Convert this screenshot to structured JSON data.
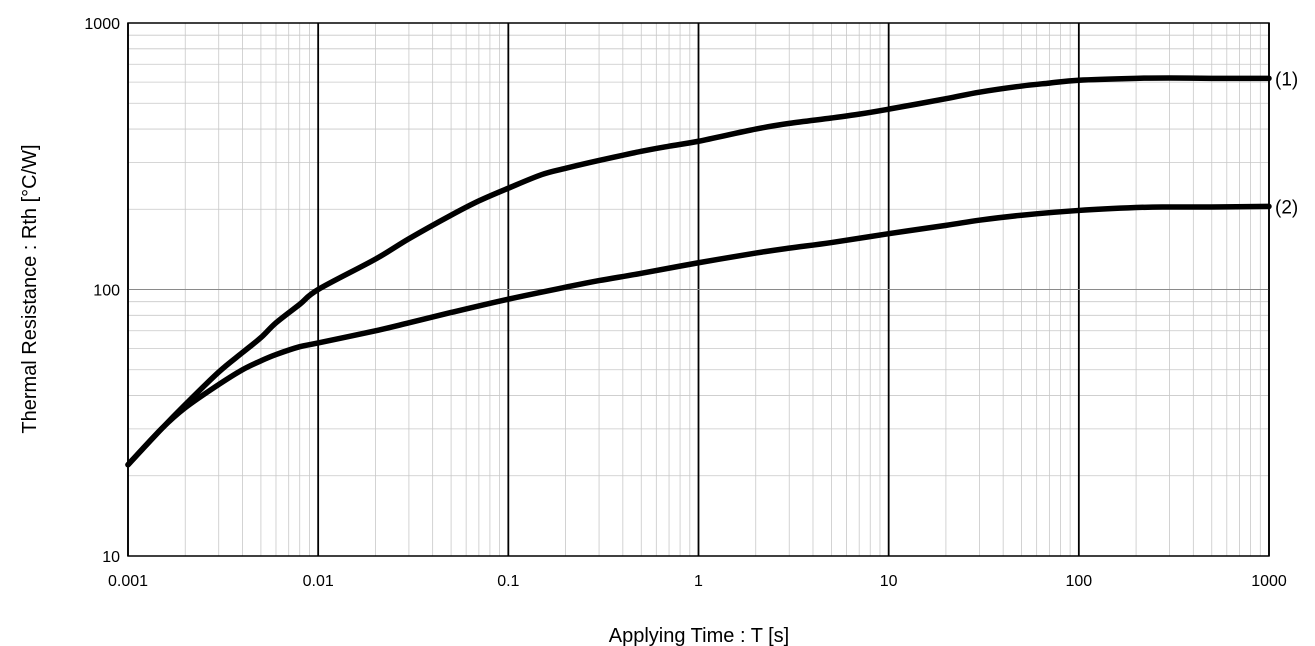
{
  "chart_data": {
    "type": "line",
    "xlabel": "Applying Time : T [s]",
    "ylabel": "Thermal Resistance : Rth [°C/W]",
    "x_scale": "log",
    "y_scale": "log",
    "xlim": [
      0.001,
      1000
    ],
    "ylim": [
      10,
      1000
    ],
    "x_ticks": [
      0.001,
      0.01,
      0.1,
      1,
      10,
      100,
      1000
    ],
    "x_tick_labels": [
      "0.001",
      "0.01",
      "0.1",
      "1",
      "10",
      "100",
      "1000"
    ],
    "y_ticks": [
      10,
      100,
      1000
    ],
    "y_tick_labels": [
      "10",
      "100",
      "1000"
    ],
    "grid": true,
    "line_color": "#000000",
    "series": [
      {
        "name": "(1)",
        "x": [
          0.001,
          0.0015,
          0.002,
          0.003,
          0.004,
          0.005,
          0.006,
          0.008,
          0.01,
          0.02,
          0.03,
          0.05,
          0.07,
          0.1,
          0.15,
          0.2,
          0.3,
          0.5,
          0.7,
          1,
          2,
          3,
          5,
          7,
          10,
          20,
          30,
          50,
          70,
          100,
          200,
          300,
          500,
          700,
          1000
        ],
        "y": [
          22,
          30,
          37,
          49,
          58,
          66,
          75,
          88,
          100,
          130,
          155,
          190,
          215,
          240,
          270,
          285,
          305,
          330,
          345,
          360,
          400,
          420,
          440,
          455,
          475,
          520,
          550,
          580,
          595,
          610,
          620,
          622,
          620,
          620,
          620
        ]
      },
      {
        "name": "(2)",
        "x": [
          0.001,
          0.0015,
          0.002,
          0.003,
          0.004,
          0.005,
          0.006,
          0.008,
          0.01,
          0.02,
          0.03,
          0.05,
          0.1,
          0.2,
          0.3,
          0.5,
          1,
          2,
          3,
          5,
          10,
          20,
          30,
          50,
          100,
          200,
          300,
          500,
          1000
        ],
        "y": [
          22,
          30,
          36,
          44,
          50,
          54,
          57,
          61,
          63,
          70,
          75,
          82,
          92,
          102,
          108,
          115,
          126,
          137,
          143,
          150,
          162,
          174,
          182,
          190,
          198,
          203,
          204,
          204,
          205
        ]
      }
    ]
  }
}
